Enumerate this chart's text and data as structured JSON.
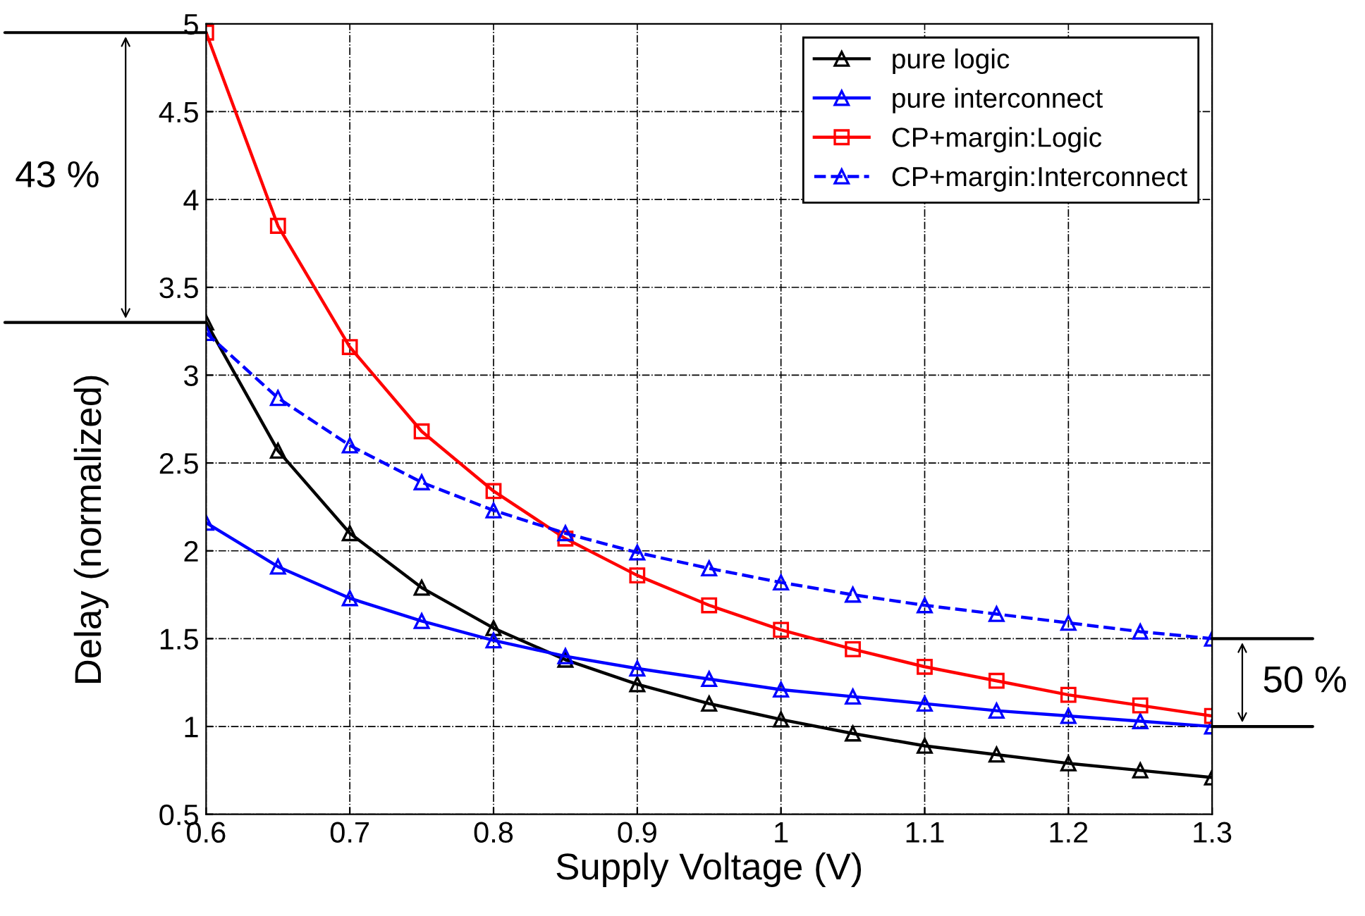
{
  "chart_data": {
    "type": "line",
    "xlabel": "Supply Voltage (V)",
    "ylabel": "Delay (normalized)",
    "x": [
      0.6,
      0.65,
      0.7,
      0.75,
      0.8,
      0.85,
      0.9,
      0.95,
      1.0,
      1.05,
      1.1,
      1.15,
      1.2,
      1.25,
      1.3
    ],
    "series": [
      {
        "name": "pure logic",
        "color": "#000000",
        "marker": "triangle",
        "line_style": "solid",
        "values": [
          3.3,
          2.57,
          2.1,
          1.79,
          1.56,
          1.38,
          1.24,
          1.13,
          1.04,
          0.96,
          0.89,
          0.84,
          0.79,
          0.75,
          0.71
        ]
      },
      {
        "name": "pure interconnect",
        "color": "#0000ff",
        "marker": "triangle",
        "line_style": "solid",
        "values": [
          2.16,
          1.91,
          1.73,
          1.6,
          1.49,
          1.4,
          1.33,
          1.27,
          1.21,
          1.17,
          1.13,
          1.09,
          1.06,
          1.03,
          1.0
        ]
      },
      {
        "name": "CP+margin:Logic",
        "color": "#ff0000",
        "marker": "square",
        "line_style": "solid",
        "values": [
          4.95,
          3.85,
          3.16,
          2.68,
          2.34,
          2.07,
          1.86,
          1.69,
          1.55,
          1.44,
          1.34,
          1.26,
          1.18,
          1.12,
          1.06
        ]
      },
      {
        "name": "CP+margin:Interconnect",
        "color": "#0000ff",
        "marker": "triangle",
        "line_style": "dashed",
        "values": [
          3.24,
          2.87,
          2.6,
          2.39,
          2.23,
          2.1,
          1.99,
          1.9,
          1.82,
          1.75,
          1.69,
          1.64,
          1.59,
          1.54,
          1.5
        ]
      }
    ],
    "xlim": [
      0.6,
      1.3
    ],
    "xticks": [
      0.6,
      0.7,
      0.8,
      0.9,
      1,
      1.1,
      1.2,
      1.3
    ],
    "ylim": [
      0.5,
      5
    ],
    "yticks": [
      0.5,
      1,
      1.5,
      2,
      2.5,
      3,
      3.5,
      4,
      4.5,
      5
    ],
    "grid": true,
    "legend": "top right",
    "annotations": [
      "43 %",
      {
        "text": "50 %",
        "x": 1.3,
        "y": 1.5
      }
    ]
  }
}
